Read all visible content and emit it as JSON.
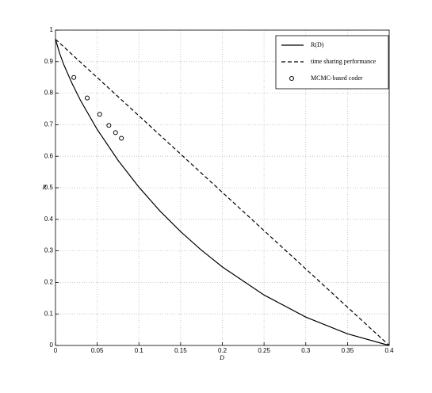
{
  "chart_data": {
    "type": "line",
    "xlabel": "D",
    "ylabel": "R",
    "xlim": [
      0,
      0.4
    ],
    "ylim": [
      0,
      1
    ],
    "xticks": [
      0,
      0.05,
      0.1,
      0.15,
      0.2,
      0.25,
      0.3,
      0.35,
      0.4
    ],
    "yticks": [
      0,
      0.1,
      0.2,
      0.3,
      0.4,
      0.5,
      0.6,
      0.7,
      0.8,
      0.9,
      1
    ],
    "grid": true,
    "legend": "upper right",
    "series": [
      {
        "name": "R(D)",
        "color": "#000000",
        "style": "solid",
        "x": [
          0,
          0.005,
          0.01,
          0.02,
          0.03,
          0.05,
          0.075,
          0.1,
          0.125,
          0.15,
          0.175,
          0.2,
          0.25,
          0.3,
          0.35,
          0.4
        ],
        "values": [
          0.971,
          0.926,
          0.89,
          0.83,
          0.777,
          0.685,
          0.587,
          0.502,
          0.427,
          0.361,
          0.302,
          0.249,
          0.16,
          0.09,
          0.037,
          0
        ]
      },
      {
        "name": "time sharing performance",
        "color": "#000000",
        "style": "dashed",
        "x": [
          0,
          0.4
        ],
        "values": [
          0.971,
          0
        ]
      },
      {
        "name": "MCMC-based coder",
        "color": "#000000",
        "style": "marker",
        "x": [
          0.022,
          0.038,
          0.053,
          0.064,
          0.072,
          0.079
        ],
        "values": [
          0.85,
          0.785,
          0.733,
          0.698,
          0.675,
          0.657
        ]
      }
    ]
  }
}
